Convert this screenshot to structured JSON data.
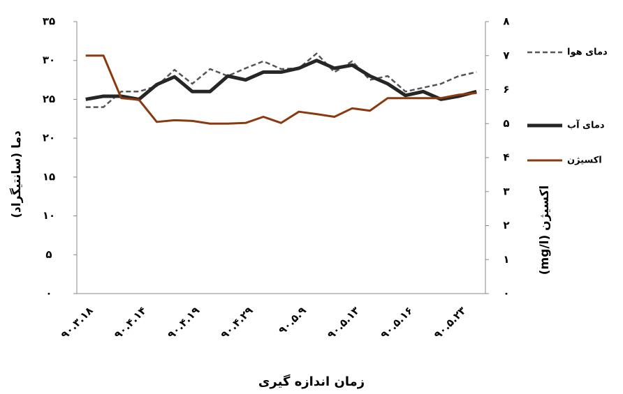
{
  "chart_data": {
    "type": "line",
    "title_x": "زمان اندازه گیری",
    "ylabel": "دما (سانتیگراد)",
    "y2label": "اکسیژن (mg/l)",
    "categories": [
      "۹۰.۳.۱۸",
      null,
      null,
      "۹۰.۴.۱۴",
      null,
      null,
      "۹۰.۴.۱۹",
      null,
      null,
      "۹۰.۴.۲۹",
      null,
      null,
      "۹۰.۵.۹",
      null,
      null,
      "۹۰.۵.۱۳",
      null,
      null,
      "۹۰.۵.۱۶",
      null,
      null,
      "۹۰.۵.۲۳",
      null
    ],
    "series": [
      {
        "name": "دمای هوا",
        "color": "#555555",
        "style": "dashed",
        "width": 2.5,
        "values": [
          24,
          24,
          26,
          26,
          26.7,
          28.8,
          27,
          28.9,
          28,
          29,
          29.9,
          28.9,
          29,
          30.9,
          28.5,
          29.9,
          27.5,
          28,
          26,
          26.5,
          27,
          28,
          28.5
        ]
      },
      {
        "name": "دمای آب",
        "color": "#262626",
        "style": "solid",
        "width": 5,
        "values": [
          25,
          25.4,
          25.4,
          25,
          26.9,
          27.9,
          26,
          26,
          28,
          27.5,
          28.5,
          28.5,
          29,
          30,
          29,
          29.4,
          28,
          27,
          25.5,
          26,
          25,
          25.4,
          26
        ]
      },
      {
        "name": "اکسیژن",
        "color": "#8b3a0f",
        "style": "solid",
        "width": 3,
        "axis": "y2",
        "values": [
          7.0,
          7.0,
          5.75,
          5.7,
          5.05,
          5.1,
          5.08,
          5.0,
          5.0,
          5.02,
          5.2,
          5.02,
          5.35,
          5.28,
          5.2,
          5.45,
          5.38,
          5.75,
          5.75,
          5.75,
          5.75,
          5.85,
          5.9
        ]
      }
    ],
    "ylim": [
      0,
      35
    ],
    "yticks": [
      {
        "value": 0,
        "label": "۰"
      },
      {
        "value": 5,
        "label": "۵"
      },
      {
        "value": 10,
        "label": "۱۰"
      },
      {
        "value": 15,
        "label": "۱۵"
      },
      {
        "value": 20,
        "label": "۲۰"
      },
      {
        "value": 25,
        "label": "۲۵"
      },
      {
        "value": 30,
        "label": "۳۰"
      },
      {
        "value": 35,
        "label": "۳۵"
      }
    ],
    "y2lim": [
      0,
      8
    ],
    "y2ticks": [
      {
        "value": 0,
        "label": "۰"
      },
      {
        "value": 1,
        "label": "۱"
      },
      {
        "value": 2,
        "label": "۲"
      },
      {
        "value": 3,
        "label": "۳"
      },
      {
        "value": 4,
        "label": "۴"
      },
      {
        "value": 5,
        "label": "۵"
      },
      {
        "value": 6,
        "label": "۶"
      },
      {
        "value": 7,
        "label": "۷"
      },
      {
        "value": 8,
        "label": "۸"
      }
    ],
    "legend": "right",
    "grid": false
  }
}
